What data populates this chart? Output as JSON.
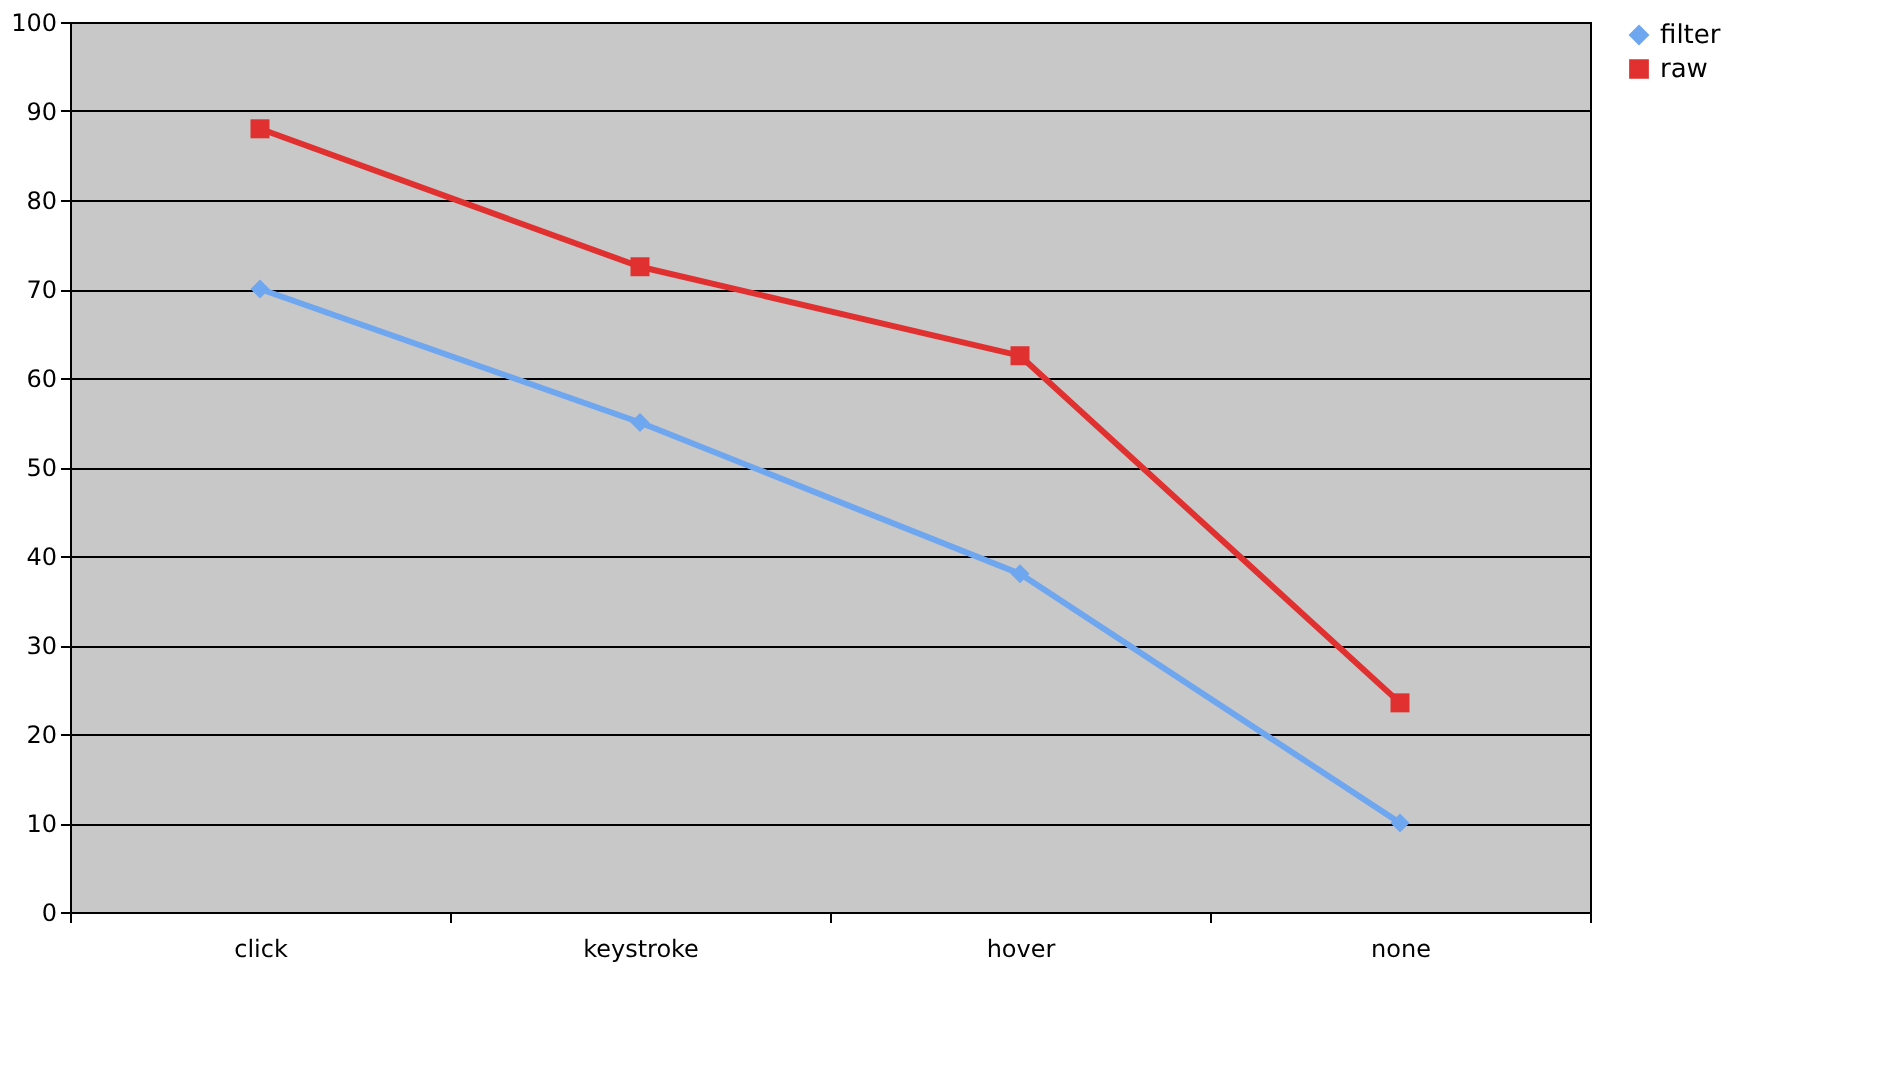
{
  "chart_data": {
    "type": "line",
    "categories": [
      "click",
      "keystroke",
      "hover",
      "none"
    ],
    "series": [
      {
        "name": "filter",
        "color": "#6ea6ef",
        "marker": "diamond",
        "values": [
          70,
          55,
          38,
          10
        ]
      },
      {
        "name": "raw",
        "color": "#e0302f",
        "marker": "square",
        "values": [
          88,
          72.5,
          62.5,
          23.5
        ]
      }
    ],
    "ylim": [
      0,
      100
    ],
    "yticks": [
      0,
      10,
      20,
      30,
      40,
      50,
      60,
      70,
      80,
      90,
      100
    ],
    "grid": "y",
    "legend": "right",
    "line_style": "solid"
  }
}
